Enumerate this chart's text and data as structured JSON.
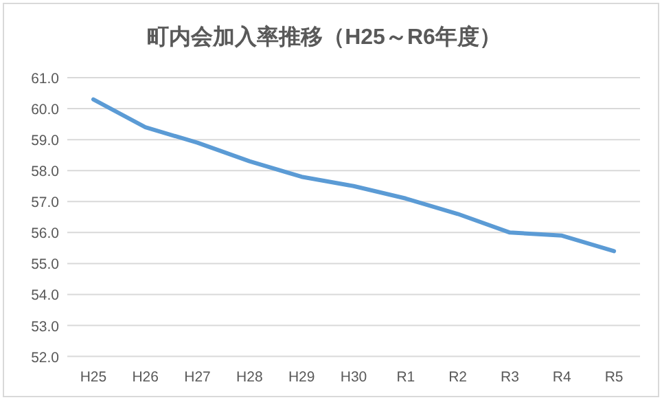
{
  "chart_data": {
    "type": "line",
    "title": "町内会加入率推移（H25～R6年度）",
    "categories": [
      "H25",
      "H26",
      "H27",
      "H28",
      "H29",
      "H30",
      "R1",
      "R2",
      "R3",
      "R4",
      "R5"
    ],
    "series": [
      {
        "color": "#5b9bd5",
        "values": [
          60.3,
          59.4,
          58.9,
          58.3,
          57.8,
          57.5,
          57.1,
          56.6,
          56.0,
          55.9,
          55.4
        ]
      }
    ],
    "ylim": [
      52,
      61
    ],
    "yticks": [
      {
        "value": 52,
        "label": "52.0"
      },
      {
        "value": 53,
        "label": "53.0"
      },
      {
        "value": 54,
        "label": "54.0"
      },
      {
        "value": 55,
        "label": "55.0"
      },
      {
        "value": 56,
        "label": "56.0"
      },
      {
        "value": 57,
        "label": "57.0"
      },
      {
        "value": 58,
        "label": "58.0"
      },
      {
        "value": 59,
        "label": "59.0"
      },
      {
        "value": 60,
        "label": "60.0"
      },
      {
        "value": 61,
        "label": "61.0"
      }
    ],
    "grid": "y"
  }
}
